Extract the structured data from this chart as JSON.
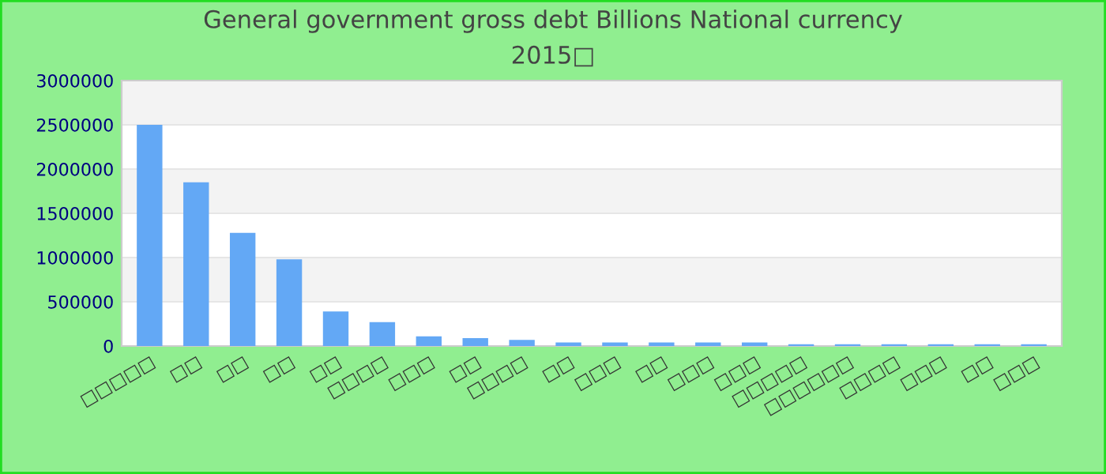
{
  "chart_data": {
    "type": "bar",
    "title": "General government gross debt Billions National currency",
    "subtitle": "2015□",
    "categories": [
      "□□□□□",
      "□□",
      "□□",
      "□□",
      "□□",
      "□□□□",
      "□□□",
      "□□",
      "□□□□",
      "□□",
      "□□□",
      "□□",
      "□□□",
      "□□□",
      "□□□□□",
      "□□□□□□",
      "□□□□",
      "□□□",
      "□□",
      "□□□"
    ],
    "values": [
      2500000,
      1850000,
      1280000,
      980000,
      390000,
      270000,
      110000,
      90000,
      70000,
      40000,
      40000,
      40000,
      40000,
      40000,
      20000,
      20000,
      20000,
      20000,
      20000,
      20000
    ],
    "color": "#63a8f5",
    "ylim": [
      0,
      3000000
    ],
    "yticks": [
      0,
      500000,
      1000000,
      1500000,
      2000000,
      2500000,
      3000000
    ],
    "grid": "y",
    "legend": false
  }
}
